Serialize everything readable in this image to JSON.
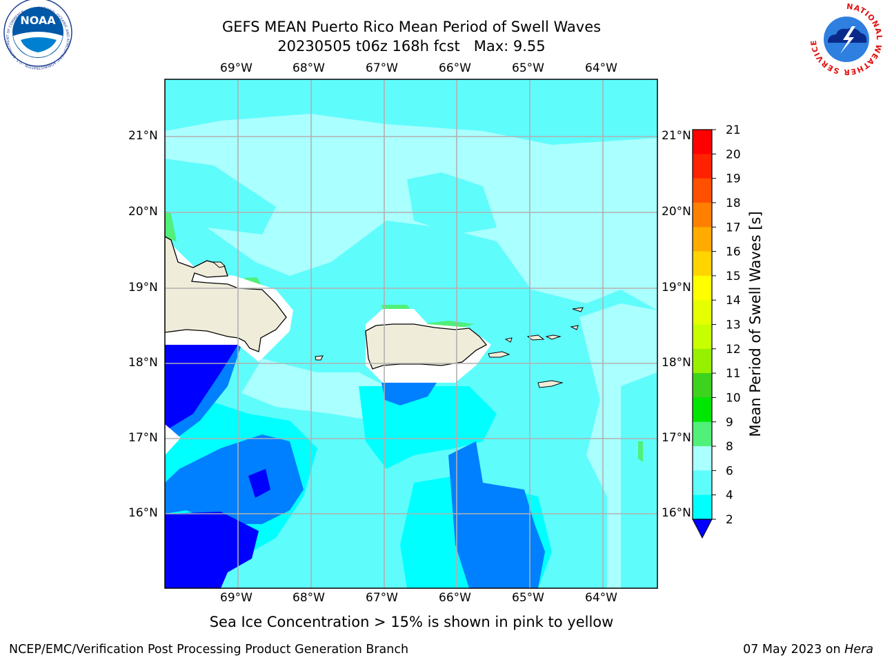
{
  "title": {
    "line1": "GEFS MEAN Puerto Rico Mean Period of Swell Waves",
    "line2": "20230505 t06z 168h fcst   Max: 9.55"
  },
  "map": {
    "lon_ticks": [
      "69°W",
      "68°W",
      "67°W",
      "66°W",
      "65°W",
      "64°W"
    ],
    "lat_ticks": [
      "21°N",
      "20°N",
      "19°N",
      "18°N",
      "17°N",
      "16°N"
    ],
    "ocean_color": "#5ffcfc",
    "land_color": "#efedda"
  },
  "colorbar": {
    "label": "Mean Period of Swell Waves [s]",
    "ticks": [
      "21",
      "20",
      "19",
      "18",
      "17",
      "16",
      "15",
      "14",
      "13",
      "12",
      "11",
      "10",
      "9",
      "8",
      "6",
      "4",
      "2"
    ],
    "colors": [
      "#ff0000",
      "#ff2200",
      "#ff5000",
      "#ff7f00",
      "#ffab00",
      "#ffd400",
      "#ffff00",
      "#e6ff00",
      "#c8ff00",
      "#96f000",
      "#3cd21e",
      "#00e600",
      "#50f07a",
      "#aaffff",
      "#5ffcfc",
      "#00ffff",
      "#0080ff",
      "#0000ff"
    ]
  },
  "note": "Sea Ice Concentration > 15% is shown in pink to yellow",
  "footer": {
    "left": "NCEP/EMC/Verification Post Processing Product Generation Branch",
    "date": "07 May 2023 on ",
    "machine": "Hera"
  },
  "logos": {
    "noaa": "NOAA",
    "noaa_ring": "NATIONAL OCEANIC AND ATMOSPHERIC ADMINISTRATION · U.S. DEPARTMENT OF COMMERCE",
    "nws_ring": "NATIONAL WEATHER SERVICE"
  }
}
